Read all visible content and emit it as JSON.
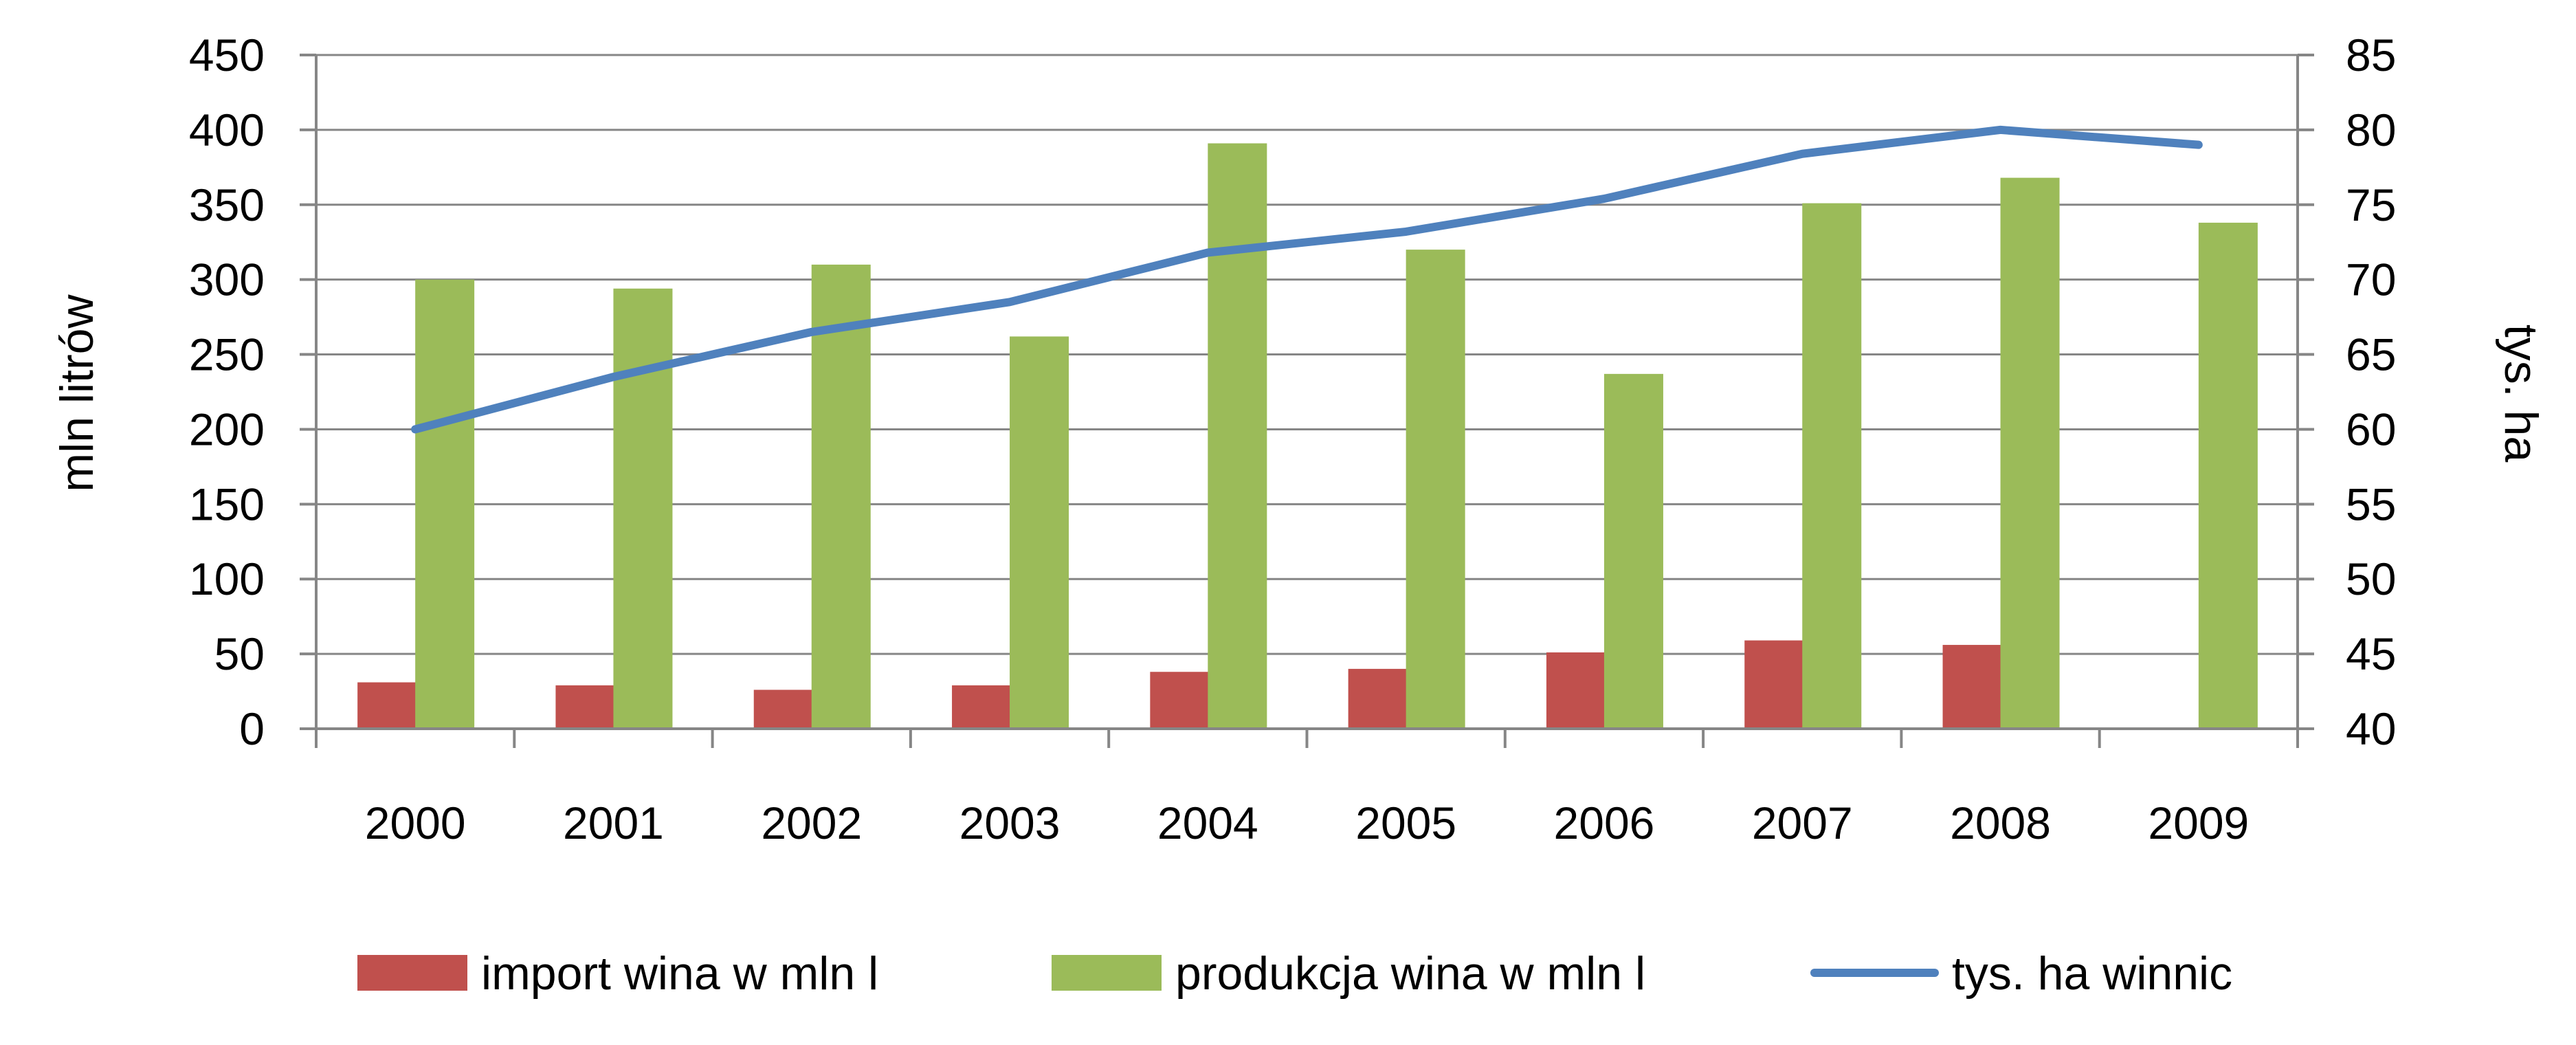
{
  "chart_data": {
    "type": "bar",
    "categories": [
      "2000",
      "2001",
      "2002",
      "2003",
      "2004",
      "2005",
      "2006",
      "2007",
      "2008",
      "2009"
    ],
    "series": [
      {
        "name": "import wina w mln l",
        "type": "bar",
        "axis": "left",
        "color": "#C0504D",
        "values": [
          31,
          29,
          26,
          29,
          38,
          40,
          51,
          59,
          56,
          null
        ]
      },
      {
        "name": "produkcja wina w mln l",
        "type": "bar",
        "axis": "left",
        "color": "#9BBB59",
        "values": [
          300,
          294,
          310,
          262,
          391,
          320,
          237,
          351,
          368,
          338
        ]
      },
      {
        "name": "tys. ha winnic",
        "type": "line",
        "axis": "right",
        "color": "#4F81BD",
        "values": [
          60.0,
          63.5,
          66.5,
          68.5,
          71.8,
          73.2,
          75.4,
          78.4,
          80.0,
          79.0
        ]
      }
    ],
    "ylabel": "mln litrów",
    "y2label": "tys. ha",
    "ylim": [
      0,
      450
    ],
    "y2lim": [
      40,
      85
    ],
    "yticks": [
      "0",
      "50",
      "100",
      "150",
      "200",
      "250",
      "300",
      "350",
      "400",
      "450"
    ],
    "y2ticks": [
      "40",
      "45",
      "50",
      "55",
      "60",
      "65",
      "70",
      "75",
      "80",
      "85"
    ],
    "grid": true,
    "legend_position": "bottom"
  }
}
